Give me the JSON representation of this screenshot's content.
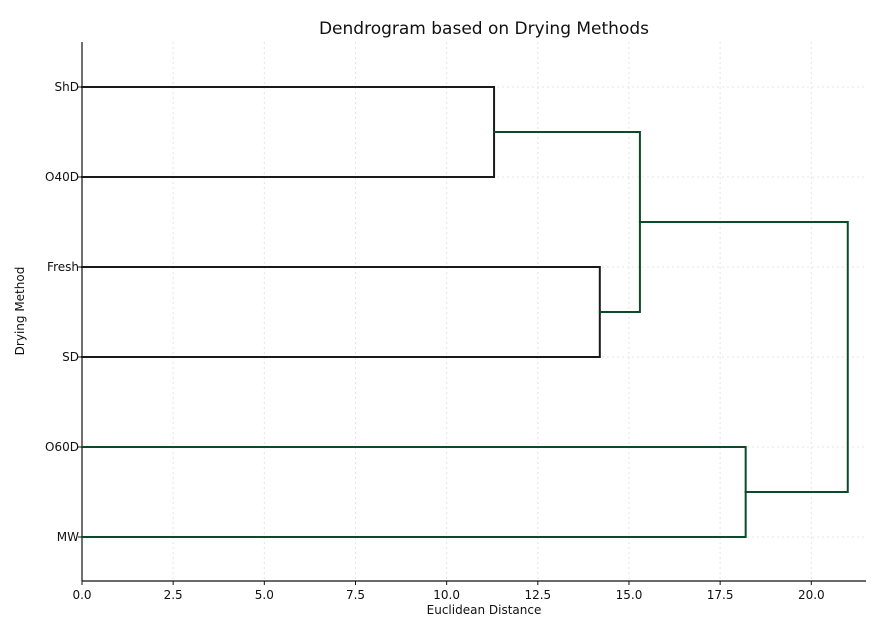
{
  "chart_data": {
    "type": "dendrogram",
    "orientation": "horizontal",
    "title": "Dendrogram based on Drying Methods",
    "xlabel": "Euclidean Distance",
    "ylabel": "Drying Method",
    "xlim": [
      0,
      21.5
    ],
    "xticks": [
      0,
      2.5,
      5,
      7.5,
      10,
      12.5,
      15,
      17.5,
      20
    ],
    "xtick_labels": [
      "0.0",
      "2.5",
      "5.0",
      "7.5",
      "10.0",
      "12.5",
      "15.0",
      "17.5",
      "20.0"
    ],
    "grid": true,
    "leaves": [
      "ShD",
      "O40D",
      "Fresh",
      "SD",
      "O60D",
      "MW"
    ],
    "merges": [
      {
        "left": "ShD",
        "right": "O40D",
        "distance": 11.3,
        "color": "#1a1a1a"
      },
      {
        "left": "Fresh",
        "right": "SD",
        "distance": 14.2,
        "color": "#1a1a1a"
      },
      {
        "left": "ShD+O40D",
        "right": "Fresh+SD",
        "distance": 15.3,
        "color": "#0d4a2a"
      },
      {
        "left": "O60D",
        "right": "MW",
        "distance": 18.2,
        "color": "#0d4a2a"
      },
      {
        "left": "ShD+O40D+Fresh+SD",
        "right": "O60D+MW",
        "distance": 21.0,
        "color": "#0d4a2a"
      }
    ]
  }
}
